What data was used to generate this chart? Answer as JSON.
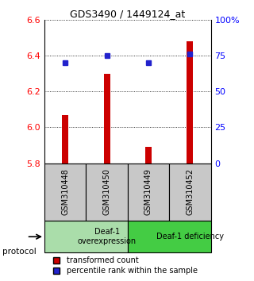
{
  "title": "GDS3490 / 1449124_at",
  "samples": [
    "GSM310448",
    "GSM310450",
    "GSM310449",
    "GSM310452"
  ],
  "transformed_counts": [
    6.07,
    6.3,
    5.89,
    6.48
  ],
  "percentile_ranks": [
    70,
    75,
    70,
    76
  ],
  "y_min": 5.8,
  "y_max": 6.6,
  "y_ticks": [
    5.8,
    6.0,
    6.2,
    6.4,
    6.6
  ],
  "pct_min": 0,
  "pct_max": 100,
  "pct_ticks": [
    0,
    25,
    50,
    75,
    100
  ],
  "pct_tick_labels": [
    "0",
    "25",
    "50",
    "75",
    "100%"
  ],
  "bar_color": "#cc0000",
  "dot_color": "#2222cc",
  "groups": [
    {
      "label": "Deaf-1\noverexpression",
      "start": 0,
      "end": 2,
      "color": "#aaddaa"
    },
    {
      "label": "Deaf-1 deficiency",
      "start": 2,
      "end": 4,
      "color": "#44cc44"
    }
  ],
  "protocol_label": "protocol",
  "legend_items": [
    {
      "color": "#cc0000",
      "label": "transformed count"
    },
    {
      "color": "#2222cc",
      "label": "percentile rank within the sample"
    }
  ],
  "sample_box_color": "#c8c8c8",
  "bar_width": 0.15
}
